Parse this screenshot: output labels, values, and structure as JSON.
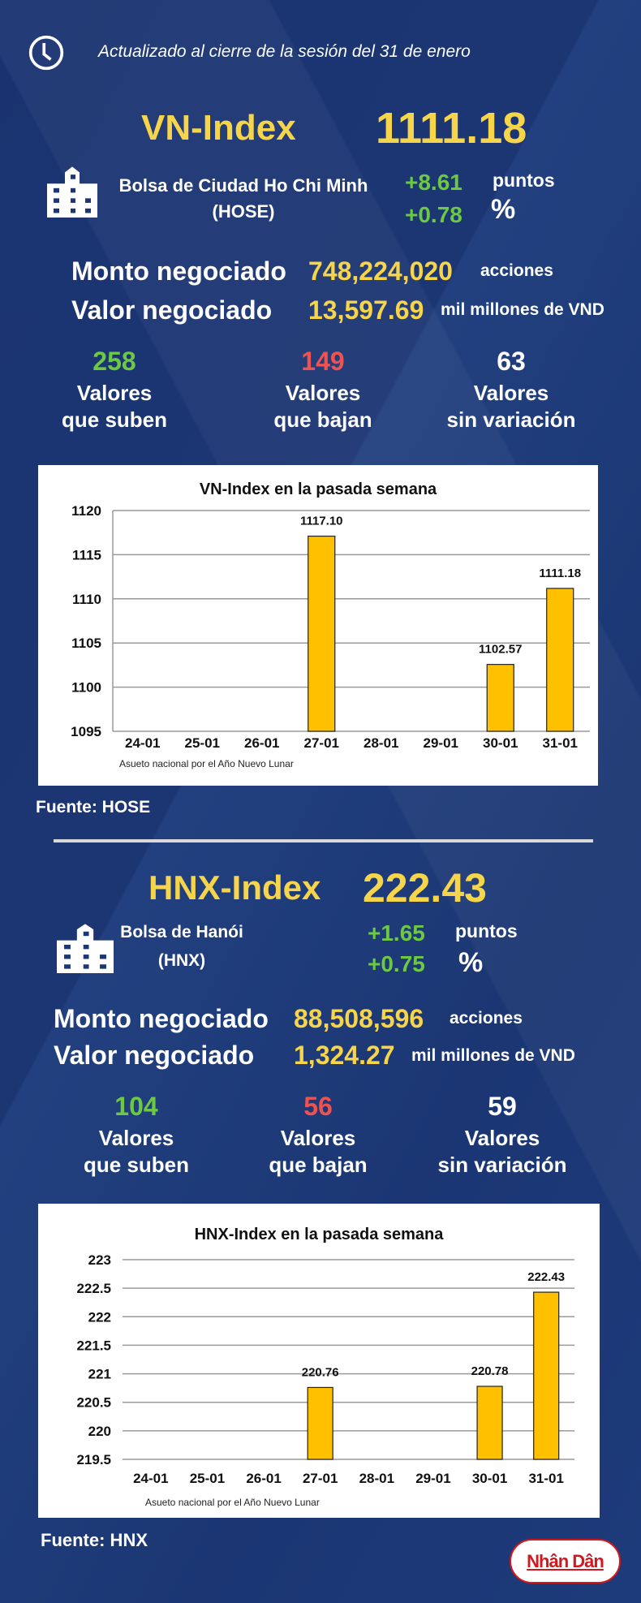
{
  "header": {
    "updated": "Actualizado al cierre de la sesión del 31 de enero"
  },
  "colors": {
    "yellow": "#f7d54a",
    "green": "#6dc944",
    "red": "#f05252",
    "bar": "#ffc000",
    "background": "#1b3673"
  },
  "hose": {
    "title": "VN-Index",
    "value": "1111.18",
    "exchange_line1": "Bolsa de Ciudad Ho Chi Minh",
    "exchange_line2": "(HOSE)",
    "change_points": "+8.61",
    "points_unit": "puntos",
    "change_pct": "+0.78",
    "pct_unit": "%",
    "volume_label": "Monto negociado",
    "volume": "748,224,020",
    "volume_unit": "acciones",
    "value_label": "Valor negociado",
    "traded_value": "13,597.69",
    "value_unit": "mil millones de VND",
    "up": {
      "count": "258",
      "line1": "Valores",
      "line2": "que suben"
    },
    "down": {
      "count": "149",
      "line1": "Valores",
      "line2": "que bajan"
    },
    "flat": {
      "count": "63",
      "line1": "Valores",
      "line2": "sin variación"
    },
    "source": "Fuente: HOSE"
  },
  "hnx": {
    "title": "HNX-Index",
    "value": "222.43",
    "exchange_line1": "Bolsa de Hanói",
    "exchange_line2": "(HNX)",
    "change_points": "+1.65",
    "points_unit": "puntos",
    "change_pct": "+0.75",
    "pct_unit": "%",
    "volume_label": "Monto negociado",
    "volume": "88,508,596",
    "volume_unit": "acciones",
    "value_label": "Valor negociado",
    "traded_value": "1,324.27",
    "value_unit": "mil millones de VND",
    "up": {
      "count": "104",
      "line1": "Valores",
      "line2": "que suben"
    },
    "down": {
      "count": "56",
      "line1": "Valores",
      "line2": "que bajan"
    },
    "flat": {
      "count": "59",
      "line1": "Valores",
      "line2": "sin variación"
    },
    "source": "Fuente:  HNX"
  },
  "logo": {
    "text": "Nhân Dân"
  },
  "chart_data": [
    {
      "type": "bar",
      "title": "VN-Index en la pasada semana",
      "categories": [
        "24-01",
        "25-01",
        "26-01",
        "27-01",
        "28-01",
        "29-01",
        "30-01",
        "31-01"
      ],
      "values": [
        null,
        null,
        null,
        1117.1,
        null,
        null,
        1102.57,
        1111.18
      ],
      "labels": [
        "",
        "",
        "",
        "1117.10",
        "",
        "",
        "1102.57",
        "1111.18"
      ],
      "yticks": [
        "1095",
        "1100",
        "1105",
        "1110",
        "1115",
        "1120"
      ],
      "ylim": [
        1095,
        1120
      ],
      "grid": true,
      "annotation": "Asueto nacional por el Año Nuevo Lunar",
      "xlabel": "",
      "ylabel": ""
    },
    {
      "type": "bar",
      "title": "HNX-Index en la pasada semana",
      "categories": [
        "24-01",
        "25-01",
        "26-01",
        "27-01",
        "28-01",
        "29-01",
        "30-01",
        "31-01"
      ],
      "values": [
        null,
        null,
        null,
        220.76,
        null,
        null,
        220.78,
        222.43
      ],
      "labels": [
        "",
        "",
        "",
        "220.76",
        "",
        "",
        "220.78",
        "222.43"
      ],
      "yticks": [
        "219.5",
        "220",
        "220.5",
        "221",
        "221.5",
        "222",
        "222.5",
        "223"
      ],
      "ylim": [
        219.5,
        223
      ],
      "grid": true,
      "annotation": "Asueto nacional por el Año Nuevo Lunar",
      "xlabel": "",
      "ylabel": ""
    }
  ]
}
